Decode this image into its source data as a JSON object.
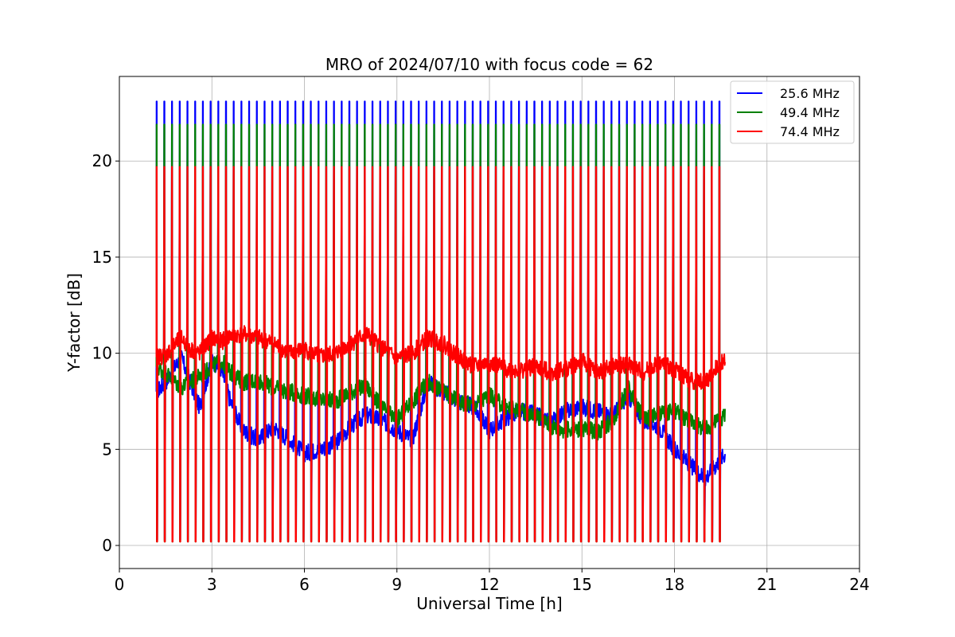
{
  "chart_data": {
    "type": "line",
    "title": "MRO of 2024/07/10 with focus code = 62",
    "xlabel": "Universal Time [h]",
    "ylabel": "Y-factor [dB]",
    "xlim": [
      0,
      24
    ],
    "ylim": [
      -1.2,
      24.4
    ],
    "xticks": [
      0,
      3,
      6,
      9,
      12,
      15,
      18,
      21,
      24
    ],
    "yticks": [
      0,
      5,
      10,
      15,
      20
    ],
    "grid": true,
    "legend_position": "top-right",
    "x_start": 1.2,
    "x_end": 19.65,
    "cycle_period_h": 0.25,
    "pulse_width_h": 0.04,
    "series": [
      {
        "name": "25.6 MHz",
        "color": "#0000ff",
        "peak_db": 23.1,
        "floor_db": 0.3,
        "baseline": {
          "x": [
            1.2,
            1.5,
            2.0,
            2.3,
            2.6,
            3.0,
            3.3,
            3.6,
            4.0,
            4.5,
            5.0,
            5.5,
            6.0,
            6.5,
            7.0,
            7.5,
            8.0,
            8.5,
            9.0,
            9.5,
            10.0,
            10.5,
            11.0,
            11.5,
            12.0,
            12.5,
            13.0,
            13.5,
            14.0,
            14.5,
            15.0,
            15.5,
            16.0,
            16.5,
            17.0,
            17.5,
            18.0,
            18.5,
            19.0,
            19.65
          ],
          "y": [
            8.0,
            8.5,
            9.8,
            8.5,
            7.2,
            9.6,
            9.2,
            7.5,
            6.0,
            5.5,
            6.2,
            5.5,
            4.8,
            5.0,
            5.3,
            6.2,
            6.8,
            6.5,
            6.0,
            5.5,
            8.5,
            8.0,
            7.5,
            7.2,
            6.0,
            6.6,
            7.0,
            6.8,
            6.4,
            7.0,
            7.2,
            7.0,
            6.8,
            7.8,
            6.5,
            6.2,
            5.0,
            4.2,
            3.5,
            4.8
          ]
        }
      },
      {
        "name": "49.4 MHz",
        "color": "#008000",
        "peak_db": 21.9,
        "floor_db": 0.2,
        "baseline": {
          "x": [
            1.2,
            1.5,
            2.0,
            2.3,
            2.6,
            3.0,
            3.3,
            3.6,
            4.0,
            4.5,
            5.0,
            5.5,
            6.0,
            6.5,
            7.0,
            7.5,
            8.0,
            8.5,
            9.0,
            9.5,
            10.0,
            10.5,
            11.0,
            11.5,
            12.0,
            12.5,
            13.0,
            13.5,
            14.0,
            14.5,
            15.0,
            15.5,
            16.0,
            16.5,
            17.0,
            17.5,
            18.0,
            18.5,
            19.0,
            19.65
          ],
          "y": [
            9.3,
            9.0,
            8.2,
            8.5,
            8.8,
            9.3,
            9.6,
            9.0,
            8.5,
            8.6,
            8.2,
            8.0,
            7.8,
            7.6,
            7.5,
            8.0,
            8.3,
            7.2,
            6.5,
            7.5,
            8.5,
            8.0,
            7.5,
            7.3,
            7.8,
            7.2,
            7.0,
            6.8,
            6.2,
            6.0,
            6.1,
            5.9,
            6.5,
            8.2,
            6.6,
            6.8,
            7.0,
            6.5,
            6.0,
            6.8
          ]
        }
      },
      {
        "name": "74.4 MHz",
        "color": "#ff0000",
        "peak_db": 19.7,
        "floor_db": 0.2,
        "baseline": {
          "x": [
            1.2,
            1.5,
            2.0,
            2.3,
            2.6,
            3.0,
            3.3,
            3.6,
            4.0,
            4.5,
            5.0,
            5.5,
            6.0,
            6.5,
            7.0,
            7.5,
            8.0,
            8.5,
            9.0,
            9.5,
            10.0,
            10.5,
            11.0,
            11.5,
            12.0,
            12.5,
            13.0,
            13.5,
            14.0,
            14.5,
            15.0,
            15.5,
            16.0,
            16.5,
            17.0,
            17.5,
            18.0,
            18.5,
            19.0,
            19.65
          ],
          "y": [
            9.8,
            9.9,
            10.8,
            10.2,
            10.0,
            10.8,
            10.6,
            10.9,
            11.0,
            10.8,
            10.5,
            10.0,
            10.2,
            9.8,
            10.0,
            10.5,
            11.0,
            10.3,
            9.7,
            10.0,
            10.8,
            10.5,
            9.8,
            9.3,
            9.5,
            9.2,
            9.1,
            9.3,
            9.0,
            9.2,
            9.6,
            9.0,
            9.3,
            9.4,
            9.0,
            9.5,
            9.2,
            8.6,
            8.5,
            9.8
          ]
        }
      }
    ]
  }
}
